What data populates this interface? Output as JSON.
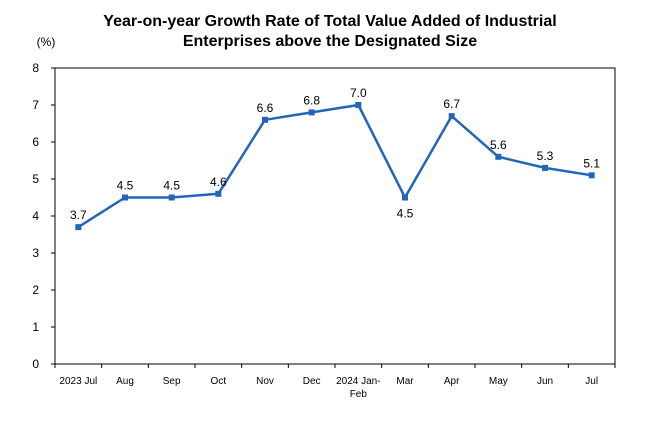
{
  "chart_data": {
    "type": "line",
    "title_line1": "Year-on-year Growth Rate of Total Value Added of Industrial",
    "title_line2": "Enterprises above the Designated Size",
    "ylabel": "(%)",
    "xlabel": "",
    "ylim": [
      0,
      8
    ],
    "yticks": [
      "0",
      "1",
      "2",
      "3",
      "4",
      "5",
      "6",
      "7",
      "8"
    ],
    "grid": false,
    "legend": "none",
    "line_color": "#2166b8",
    "categories": [
      [
        "2023 Jul"
      ],
      [
        "Aug"
      ],
      [
        "Sep"
      ],
      [
        "Oct"
      ],
      [
        "Nov"
      ],
      [
        "Dec"
      ],
      [
        "2024 Jan-",
        "Feb"
      ],
      [
        "Mar"
      ],
      [
        "Apr"
      ],
      [
        "May"
      ],
      [
        "Jun"
      ],
      [
        "Jul"
      ]
    ],
    "values": [
      3.7,
      4.5,
      4.5,
      4.6,
      6.6,
      6.8,
      7.0,
      4.5,
      6.7,
      5.6,
      5.3,
      5.1
    ],
    "data_labels": [
      "3.7",
      "4.5",
      "4.5",
      "4.6",
      "6.6",
      "6.8",
      "7.0",
      "4.5",
      "6.7",
      "5.6",
      "5.3",
      "5.1"
    ]
  }
}
